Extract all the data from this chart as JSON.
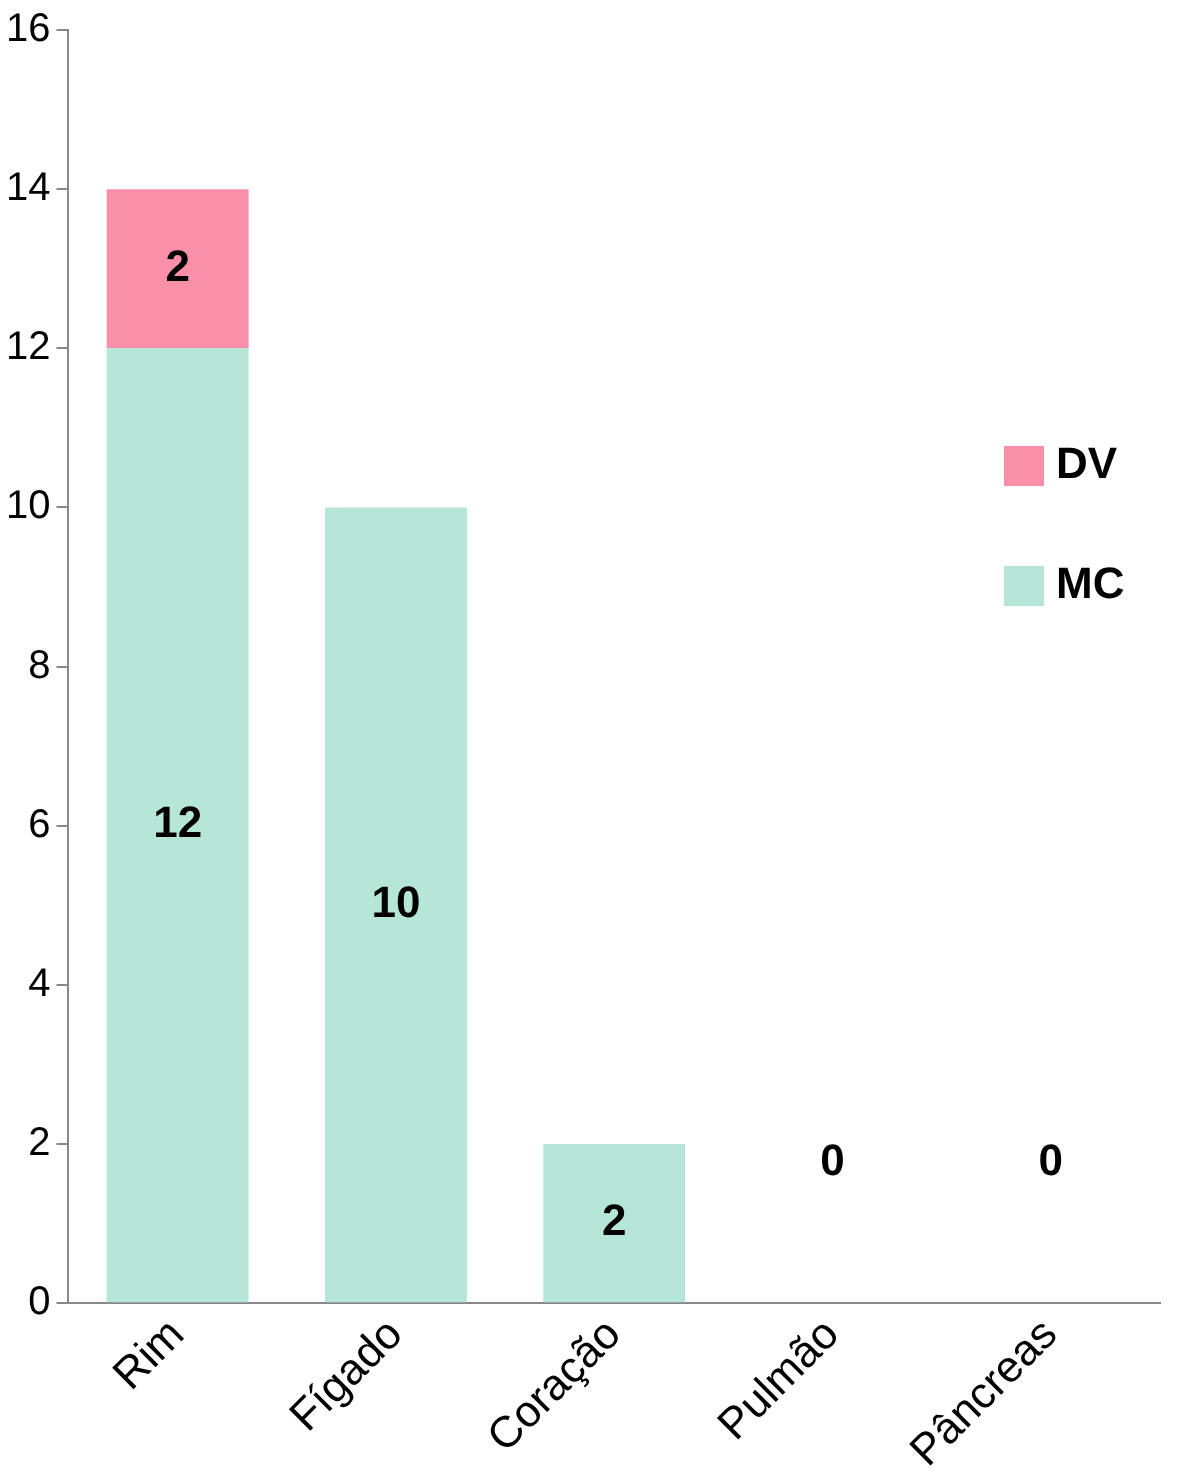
{
  "chart_data": {
    "type": "bar",
    "stacked": true,
    "categories": [
      "Rim",
      "Fígado",
      "Coração",
      "Pulmão",
      "Pâncreas"
    ],
    "series": [
      {
        "name": "MC",
        "color": "#b6e6d8",
        "values": [
          12,
          10,
          2,
          0,
          0
        ],
        "value_labels": [
          "12",
          "10",
          "2",
          "0",
          "0"
        ]
      },
      {
        "name": "DV",
        "color": "#f98fa8",
        "values": [
          2,
          null,
          null,
          null,
          null
        ],
        "value_labels": [
          "2",
          null,
          null,
          null,
          null
        ]
      }
    ],
    "ylim": [
      0,
      16
    ],
    "yticks": [
      0,
      2,
      4,
      6,
      8,
      10,
      12,
      14,
      16
    ],
    "grid": false,
    "legend": "right"
  }
}
